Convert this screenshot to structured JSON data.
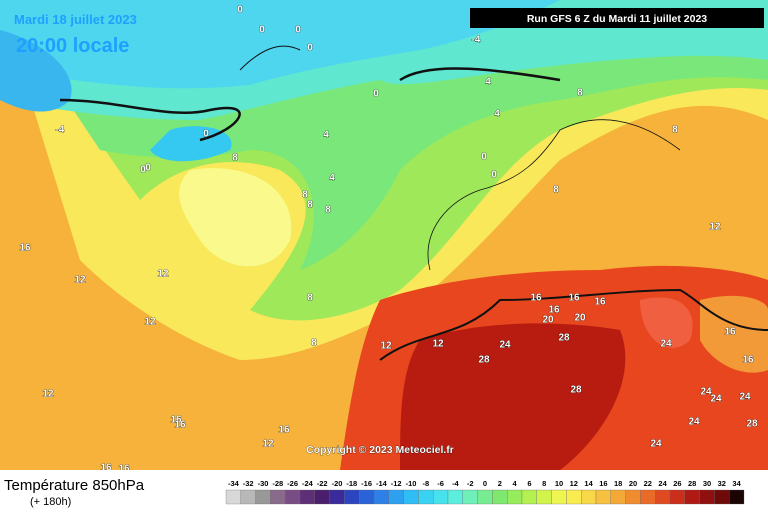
{
  "header": {
    "date": "Mardi 18 juillet 2023",
    "time": "20:00 locale",
    "run": "Run GFS 6 Z du Mardi 11 juillet 2023"
  },
  "copyright": "Copyright © 2023 Meteociel.fr",
  "footer": {
    "title": "Température 850hPa",
    "lead": "(+ 180h)"
  },
  "map": {
    "contour_labels": [
      "0",
      "0",
      "0",
      "0",
      "-4",
      "0",
      "4",
      "4",
      "0",
      "0",
      "8",
      "4",
      "8",
      "8",
      "8",
      "4",
      "8",
      "0",
      "0",
      "8",
      "8",
      "12",
      "16",
      "12",
      "12",
      "8",
      "8",
      "12",
      "12",
      "16",
      "16",
      "16",
      "20",
      "20",
      "16",
      "28",
      "24",
      "28",
      "24",
      "28",
      "24",
      "24",
      "24",
      "16",
      "16",
      "12",
      "16",
      "16",
      "12",
      "12",
      "16",
      "16",
      "16",
      "24",
      "24",
      "28",
      "-4",
      "0"
    ]
  },
  "legend": {
    "values": [
      -34,
      -32,
      -30,
      -28,
      -26,
      -24,
      -22,
      -20,
      -18,
      -16,
      -14,
      -12,
      -10,
      -8,
      -6,
      -4,
      -2,
      0,
      2,
      4,
      6,
      8,
      10,
      12,
      14,
      16,
      18,
      20,
      22,
      24,
      26,
      28,
      30,
      32,
      34
    ],
    "colors": [
      "#d8d8d8",
      "#b8b8b8",
      "#989898",
      "#8a6a8a",
      "#7a4c86",
      "#5e2f78",
      "#4a1e6a",
      "#3a2a9a",
      "#2b45c0",
      "#2a62d8",
      "#2c80e8",
      "#2ea0f0",
      "#30bcf4",
      "#3ad2f2",
      "#48e2ec",
      "#5ceedd",
      "#6ef0b8",
      "#78ec90",
      "#7ee870",
      "#96ec5a",
      "#b4f050",
      "#d2f24c",
      "#eef550",
      "#f8ec50",
      "#f8d848",
      "#f6c040",
      "#f4a838",
      "#f08c30",
      "#ea6a28",
      "#e04a22",
      "#cc2e1c",
      "#b01a14",
      "#901010",
      "#6e0a0a",
      "#1a0404"
    ]
  }
}
